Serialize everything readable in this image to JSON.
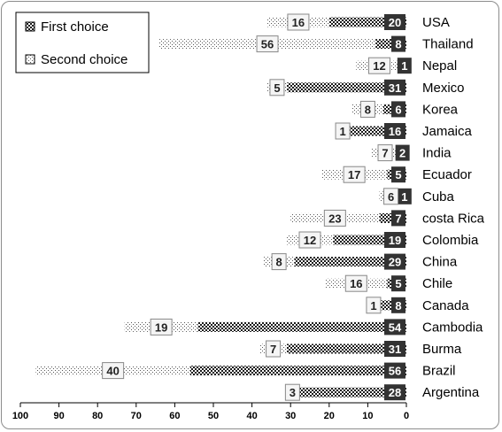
{
  "chart_data": {
    "type": "bar",
    "orientation": "horizontal-reversed",
    "stacked": true,
    "categories": [
      "USA",
      "Thailand",
      "Nepal",
      "Mexico",
      "Korea",
      "Jamaica",
      "India",
      "Ecuador",
      "Cuba",
      "costa Rica",
      "Colombia",
      "China",
      "Chile",
      "Canada",
      "Cambodia",
      "Burma",
      "Brazil",
      "Argentina"
    ],
    "series": [
      {
        "name": "First choice",
        "values": [
          20,
          8,
          1,
          31,
          6,
          16,
          2,
          5,
          1,
          7,
          19,
          29,
          5,
          8,
          54,
          31,
          56,
          28
        ]
      },
      {
        "name": "Second choice",
        "values": [
          16,
          56,
          12,
          5,
          8,
          1,
          7,
          17,
          6,
          23,
          12,
          8,
          16,
          1,
          19,
          7,
          40,
          3
        ]
      }
    ],
    "xlim": [
      0,
      100
    ],
    "x_ticks": [
      "100",
      "90",
      "80",
      "70",
      "60",
      "50",
      "40",
      "30",
      "20",
      "10",
      "0"
    ],
    "title": "",
    "xlabel": "",
    "ylabel": "",
    "grid": false,
    "legend_position": "top-left",
    "colors": {
      "first_fill": "#1a1a1a",
      "second_fill": "#f2f2f2",
      "label_dark_bg": "#333333",
      "label_light_bg": "#f5f5f5",
      "frame": "#8c8c8c"
    }
  }
}
